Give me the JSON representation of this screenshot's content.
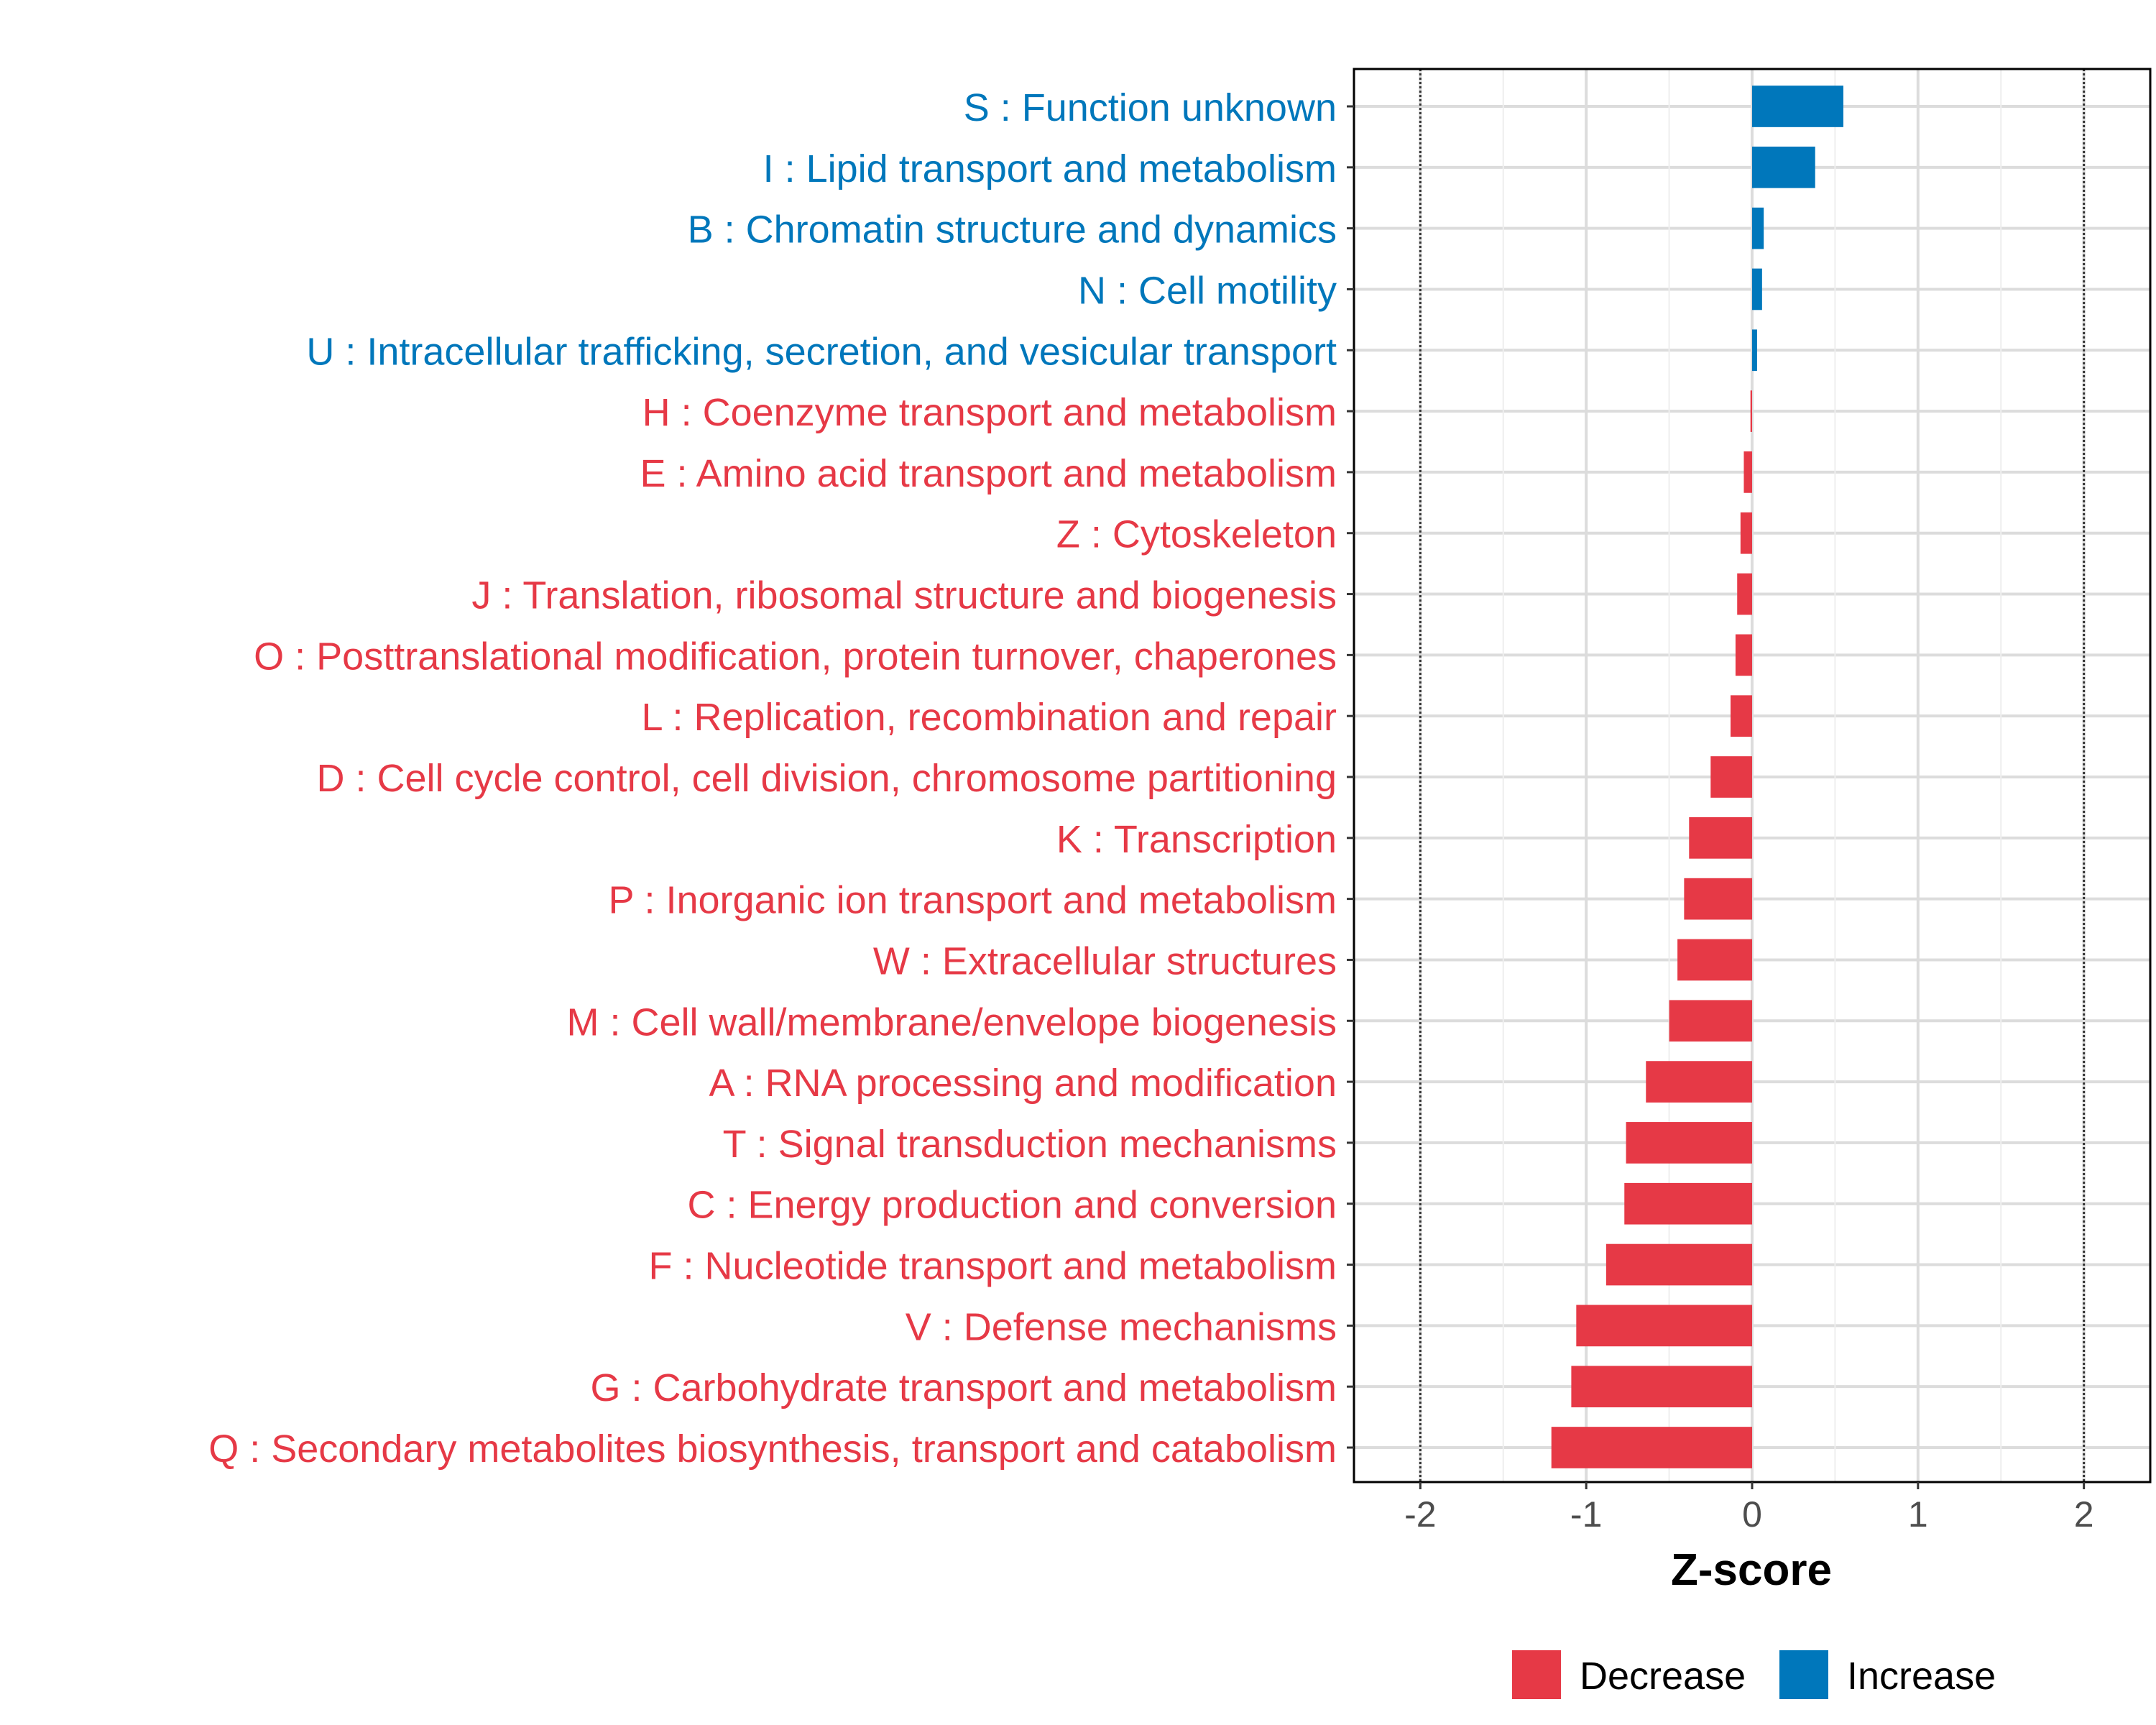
{
  "chart_data": {
    "type": "bar",
    "orientation": "horizontal",
    "xlabel": "Z-score",
    "ylabel": "",
    "xlim": [
      -2.4,
      2.4
    ],
    "xticks": [
      -2,
      -1,
      0,
      1,
      2
    ],
    "xtick_labels": [
      "-2",
      "-1",
      "0",
      "1",
      "2"
    ],
    "reference_lines": [
      -2,
      2
    ],
    "grid": true,
    "legend_position": "bottom",
    "legend": [
      {
        "name": "Decrease",
        "color": "#E63946"
      },
      {
        "name": "Increase",
        "color": "#0077BB"
      }
    ],
    "categories": [
      "S : Function unknown",
      "I : Lipid transport and metabolism",
      "B : Chromatin structure and dynamics",
      "N : Cell motility",
      "U : Intracellular trafficking, secretion, and vesicular transport",
      "H : Coenzyme transport and metabolism",
      "E : Amino acid transport and metabolism",
      "Z : Cytoskeleton",
      "J : Translation, ribosomal structure and biogenesis",
      "O : Posttranslational modification, protein turnover, chaperones",
      "L : Replication, recombination and repair",
      "D : Cell cycle control, cell division, chromosome partitioning",
      "K : Transcription",
      "P : Inorganic ion transport and metabolism",
      "W : Extracellular structures",
      "M : Cell wall/membrane/envelope biogenesis",
      "A : RNA processing and modification",
      "T : Signal transduction mechanisms",
      "C : Energy production and conversion",
      "F : Nucleotide transport and metabolism",
      "V : Defense mechanisms",
      "G : Carbohydrate transport and metabolism",
      "Q : Secondary metabolites biosynthesis, transport and catabolism"
    ],
    "values": [
      0.55,
      0.38,
      0.07,
      0.06,
      0.03,
      -0.01,
      -0.05,
      -0.07,
      -0.09,
      -0.1,
      -0.13,
      -0.25,
      -0.38,
      -0.41,
      -0.45,
      -0.5,
      -0.64,
      -0.76,
      -0.77,
      -0.88,
      -1.06,
      -1.09,
      -1.21
    ],
    "groups": [
      "Increase",
      "Increase",
      "Increase",
      "Increase",
      "Increase",
      "Decrease",
      "Decrease",
      "Decrease",
      "Decrease",
      "Decrease",
      "Decrease",
      "Decrease",
      "Decrease",
      "Decrease",
      "Decrease",
      "Decrease",
      "Decrease",
      "Decrease",
      "Decrease",
      "Decrease",
      "Decrease",
      "Decrease",
      "Decrease"
    ]
  }
}
